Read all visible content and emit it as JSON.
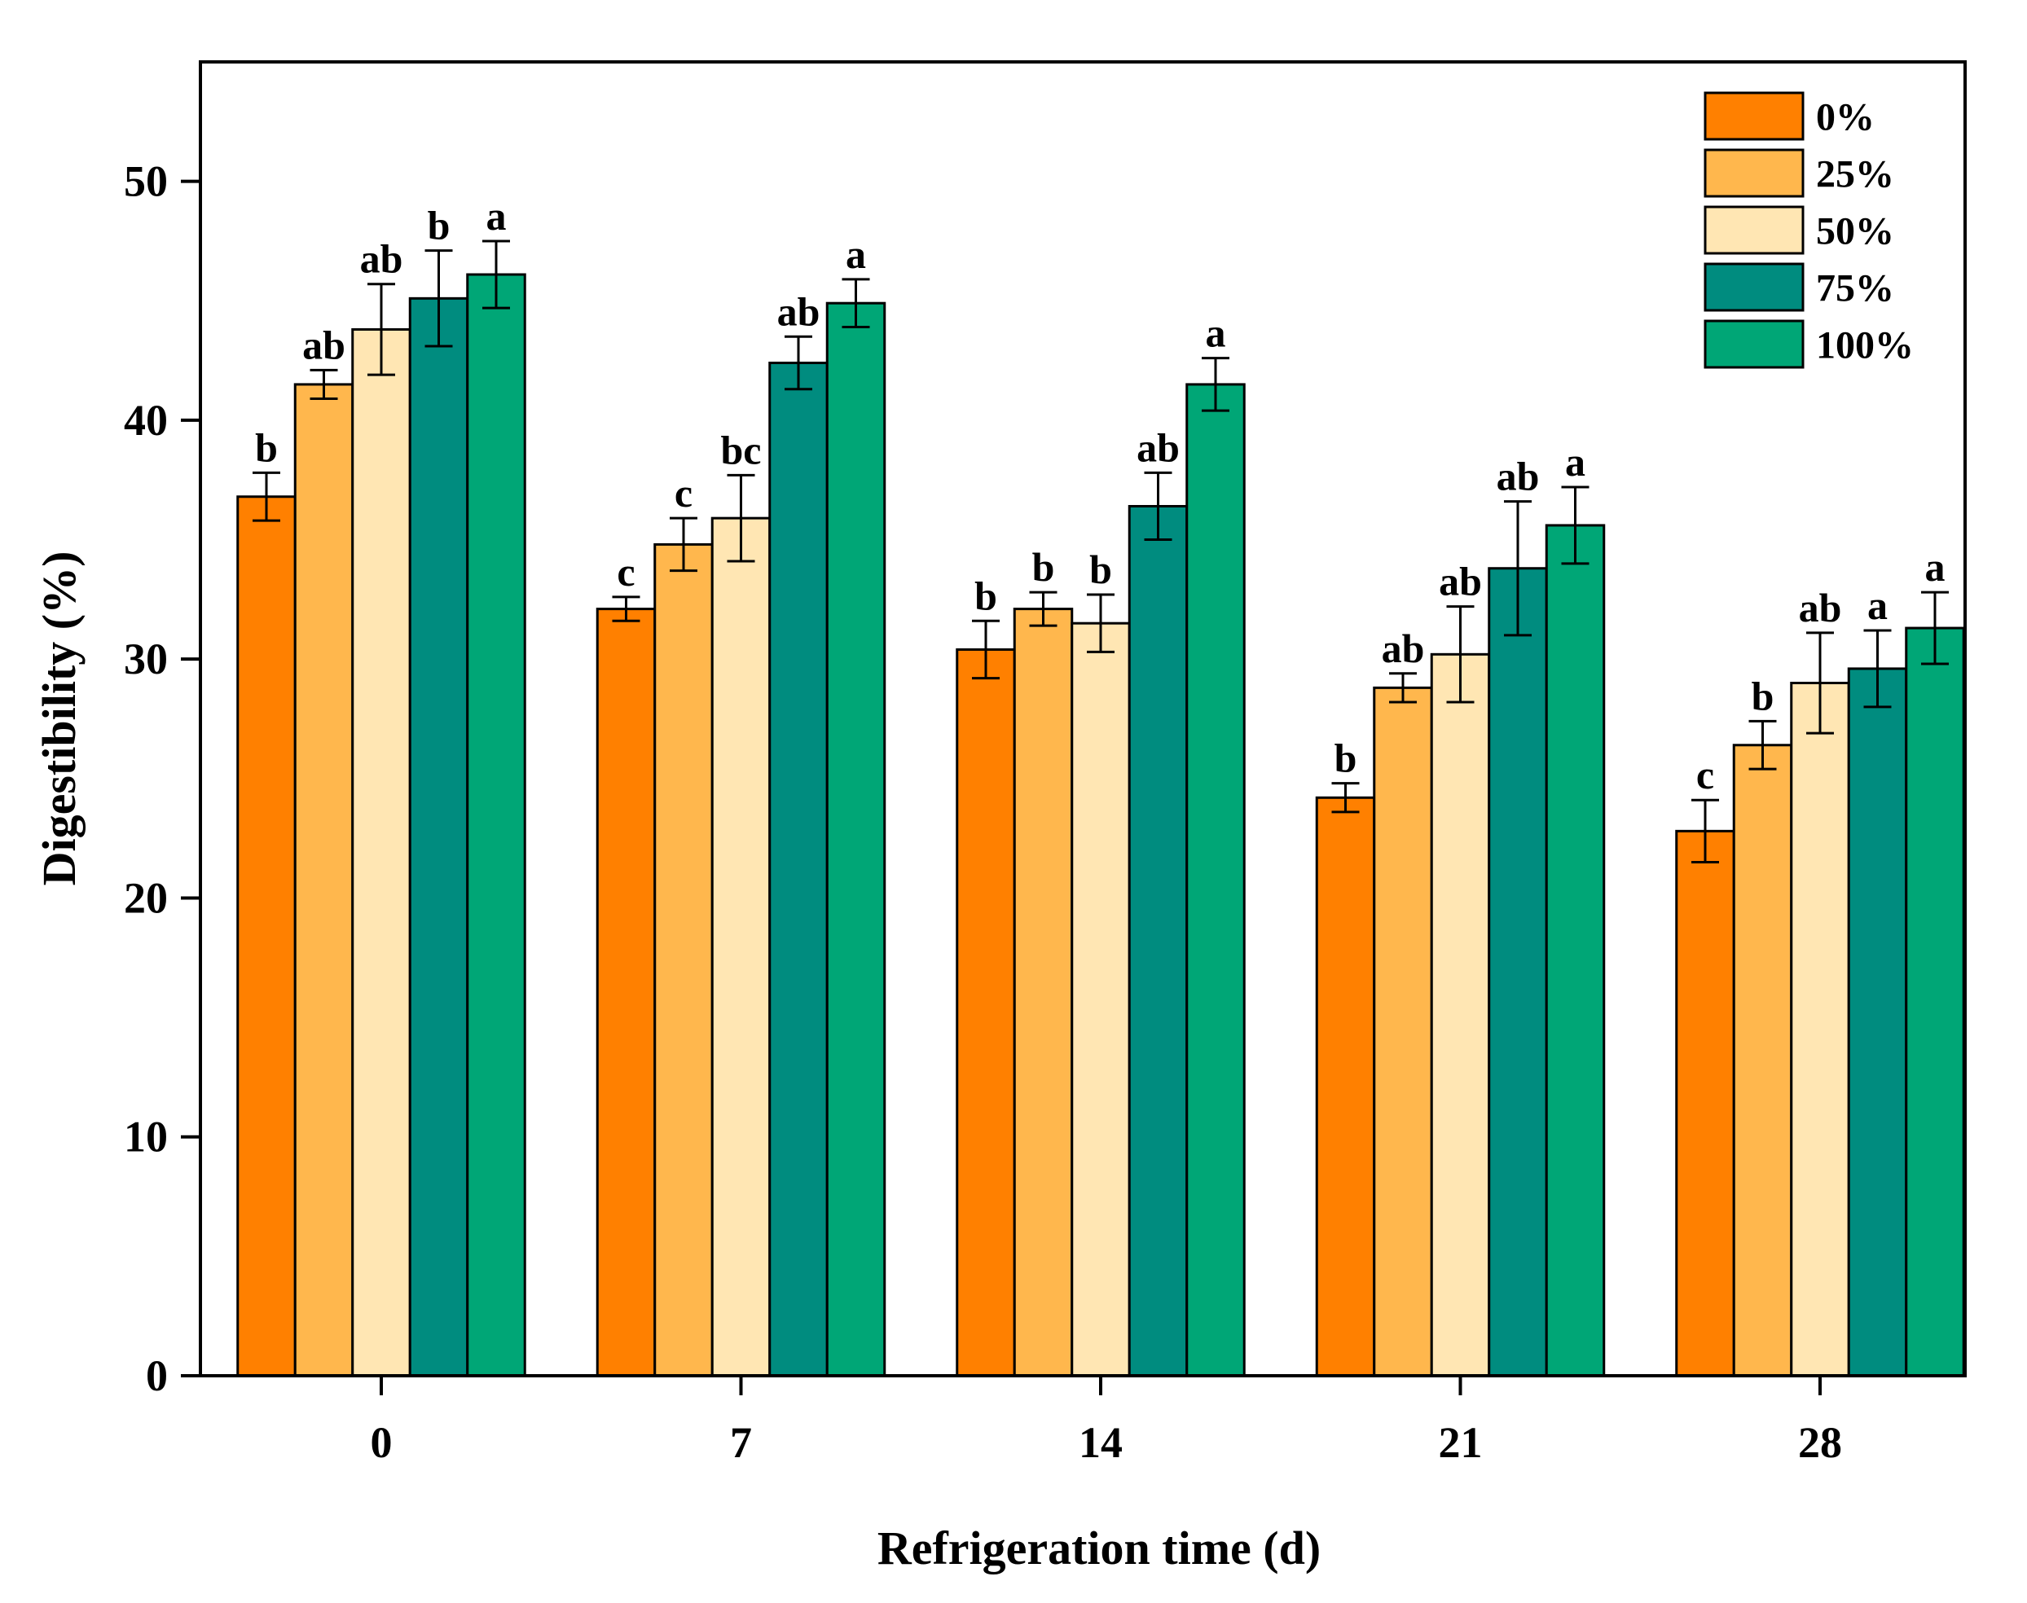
{
  "chart_data": {
    "type": "bar",
    "title": "",
    "xlabel": "Refrigeration time (d)",
    "ylabel": "Digestibility (%)",
    "ylim": [
      0,
      55
    ],
    "yticks": [
      0,
      10,
      20,
      30,
      40,
      50
    ],
    "yticks_text": [
      "0",
      "10",
      "20",
      "30",
      "40",
      "50"
    ],
    "categories": [
      "0",
      "7",
      "14",
      "21",
      "28"
    ],
    "legend_position": "top-right",
    "grid": false,
    "series": [
      {
        "name": "0%",
        "color": "#FF8000",
        "values": [
          36.8,
          32.1,
          30.4,
          24.2,
          22.8
        ],
        "errors": [
          1.0,
          0.5,
          1.2,
          0.6,
          1.3
        ],
        "labels": [
          "b",
          "c",
          "b",
          "b",
          "c"
        ]
      },
      {
        "name": "25%",
        "color": "#FFB74D",
        "values": [
          41.5,
          34.8,
          32.1,
          28.8,
          26.4
        ],
        "errors": [
          0.6,
          1.1,
          0.7,
          0.6,
          1.0
        ],
        "labels": [
          "ab",
          "c",
          "b",
          "ab",
          "b"
        ]
      },
      {
        "name": "50%",
        "color": "#FFE6B3",
        "values": [
          43.8,
          35.9,
          31.5,
          30.2,
          29.0
        ],
        "errors": [
          1.9,
          1.8,
          1.2,
          2.0,
          2.1
        ],
        "labels": [
          "ab",
          "bc",
          "b",
          "ab",
          "ab"
        ]
      },
      {
        "name": "75%",
        "color": "#008C7F",
        "values": [
          45.1,
          42.4,
          36.4,
          33.8,
          29.6
        ],
        "errors": [
          2.0,
          1.1,
          1.4,
          2.8,
          1.6
        ],
        "labels": [
          "b",
          "ab",
          "ab",
          "ab",
          "a"
        ]
      },
      {
        "name": "100%",
        "color": "#00A676",
        "values": [
          46.1,
          44.9,
          41.5,
          35.6,
          31.3
        ],
        "errors": [
          1.4,
          1.0,
          1.1,
          1.6,
          1.5
        ],
        "labels": [
          "a",
          "a",
          "a",
          "a",
          "a"
        ]
      }
    ]
  }
}
